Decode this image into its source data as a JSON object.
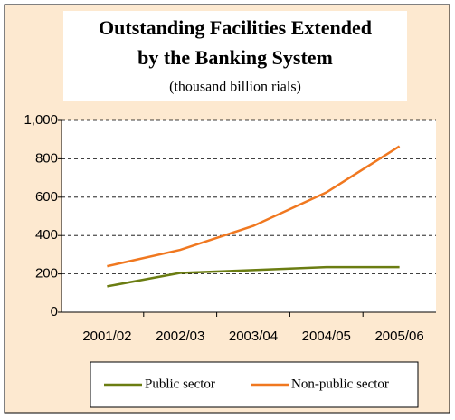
{
  "chart_data": {
    "type": "line",
    "title": "Outstanding Facilities Extended",
    "title_line2": "by the Banking System",
    "subtitle": "(thousand billion rials)",
    "categories": [
      "2001/02",
      "2002/03",
      "2003/04",
      "2004/05",
      "2005/06"
    ],
    "series": [
      {
        "name": "Public sector",
        "color": "#6b7d12",
        "values": [
          135,
          205,
          220,
          235,
          235
        ]
      },
      {
        "name": "Non-public sector",
        "color": "#f07820",
        "values": [
          240,
          325,
          450,
          625,
          865
        ]
      }
    ],
    "ylim": [
      0,
      1000
    ],
    "yticks": [
      0,
      200,
      400,
      600,
      800,
      {
        "value": 1000,
        "label": "1,000"
      }
    ],
    "grid": true,
    "legend": "bottom"
  }
}
